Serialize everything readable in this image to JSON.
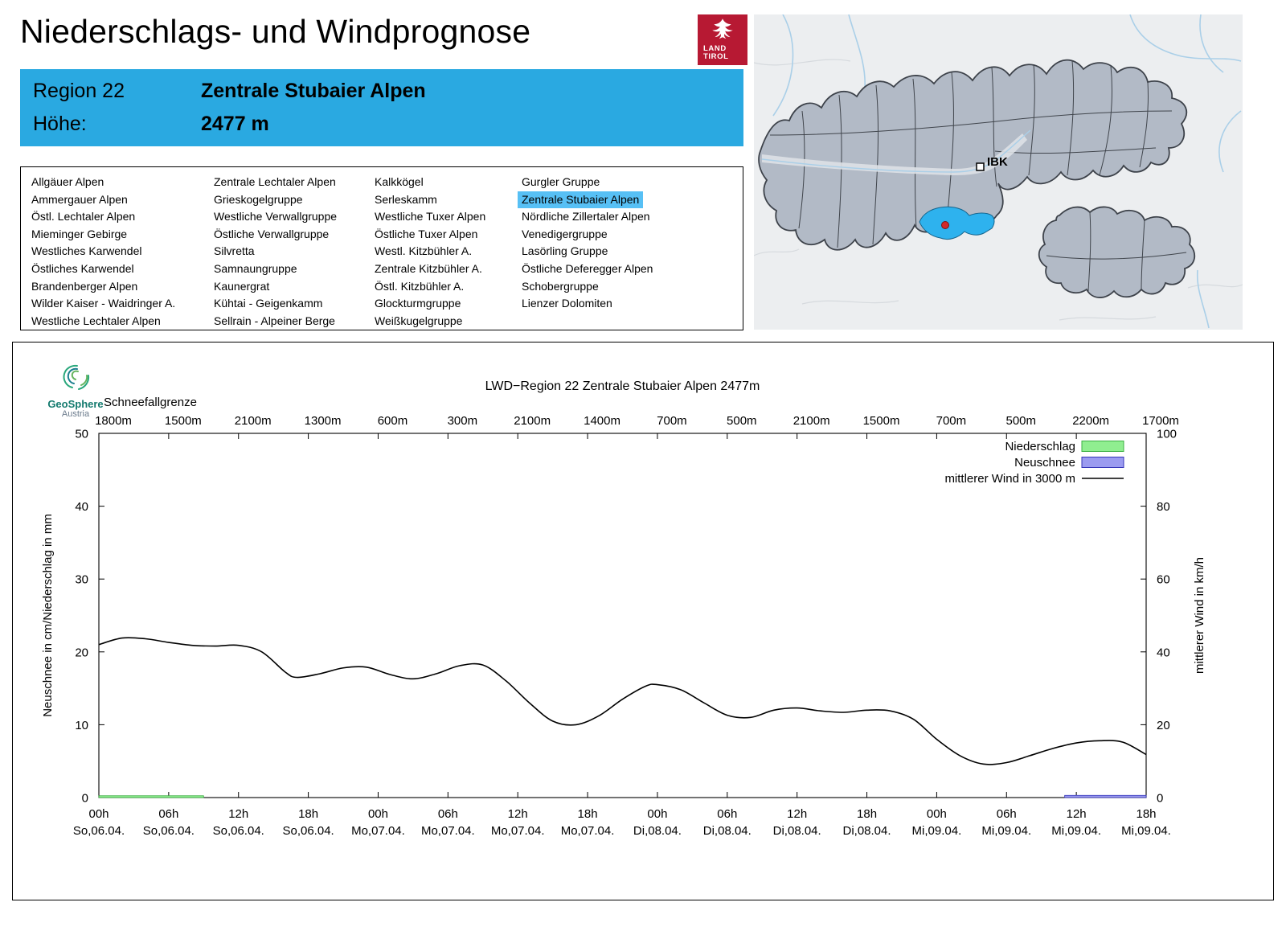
{
  "page": {
    "title": "Niederschlags- und Windprognose"
  },
  "colors": {
    "header_blue": "#2aa9e1",
    "list_highlight_blue": "#57c0f5",
    "map_highlight_blue": "#2eb2ee",
    "tirol_red": "#b71933",
    "marker_red": "#d42a2a"
  },
  "land_tirol_logo": {
    "line1": "LAND",
    "line2": "TIROL"
  },
  "geosphere_logo": {
    "line1": "GeoSphere",
    "line2": "Austria"
  },
  "region_header": {
    "region_label": "Region 22",
    "region_name": "Zentrale Stubaier Alpen",
    "altitude_label": "Höhe:",
    "altitude_value": "2477 m"
  },
  "map": {
    "city_label": "IBK"
  },
  "region_list": {
    "selected": "Zentrale Stubaier Alpen",
    "columns": [
      [
        "Allgäuer Alpen",
        "Ammergauer Alpen",
        "Östl. Lechtaler Alpen",
        "Mieminger Gebirge",
        "Westliches Karwendel",
        "Östliches Karwendel",
        "Brandenberger Alpen",
        "Wilder Kaiser - Waidringer A.",
        "Westliche Lechtaler Alpen"
      ],
      [
        "Zentrale Lechtaler Alpen",
        "Grieskogelgruppe",
        "Westliche Verwallgruppe",
        "Östliche Verwallgruppe",
        "Silvretta",
        "Samnaungruppe",
        "Kaunergrat",
        "Kühtai - Geigenkamm",
        "Sellrain - Alpeiner Berge"
      ],
      [
        "Kalkkögel",
        "Serleskamm",
        "Westliche Tuxer Alpen",
        "Östliche Tuxer Alpen",
        "Westl. Kitzbühler A.",
        "Zentrale Kitzbühler A.",
        "Östl. Kitzbühler A.",
        "Glockturmgruppe",
        "Weißkugelgruppe"
      ],
      [
        "Gurgler Gruppe",
        "Zentrale Stubaier Alpen",
        "Nördliche Zillertaler Alpen",
        "Venedigergruppe",
        "Lasörling Gruppe",
        "Östliche Deferegger Alpen",
        "Schobergruppe",
        "Lienzer Dolomiten"
      ]
    ]
  },
  "chart_data": {
    "type": "line",
    "title": "LWD−Region 22 Zentrale Stubaier Alpen 2477m",
    "snowline": {
      "label": "Schneefallgrenze",
      "values": [
        "1800m",
        "1500m",
        "2100m",
        "1300m",
        "600m",
        "300m",
        "2100m",
        "1400m",
        "700m",
        "500m",
        "2100m",
        "1500m",
        "700m",
        "500m",
        "2200m",
        "1700m"
      ]
    },
    "ylabel_left": "Neuschnee in cm/Niederschlag in mm",
    "ylabel_right": "mittlerer Wind in km/h",
    "ylim_left": [
      0,
      50
    ],
    "ylim_right": [
      0,
      100
    ],
    "yticks_left": [
      0,
      10,
      20,
      30,
      40,
      50
    ],
    "yticks_right": [
      0,
      20,
      40,
      60,
      80,
      100
    ],
    "x_hours_range": [
      0,
      90
    ],
    "x_ticks": [
      {
        "time": "00h",
        "date": "So,06.04."
      },
      {
        "time": "06h",
        "date": "So,06.04."
      },
      {
        "time": "12h",
        "date": "So,06.04."
      },
      {
        "time": "18h",
        "date": "So,06.04."
      },
      {
        "time": "00h",
        "date": "Mo,07.04."
      },
      {
        "time": "06h",
        "date": "Mo,07.04."
      },
      {
        "time": "12h",
        "date": "Mo,07.04."
      },
      {
        "time": "18h",
        "date": "Mo,07.04."
      },
      {
        "time": "00h",
        "date": "Di,08.04."
      },
      {
        "time": "06h",
        "date": "Di,08.04."
      },
      {
        "time": "12h",
        "date": "Di,08.04."
      },
      {
        "time": "18h",
        "date": "Di,08.04."
      },
      {
        "time": "00h",
        "date": "Mi,09.04."
      },
      {
        "time": "06h",
        "date": "Mi,09.04."
      },
      {
        "time": "12h",
        "date": "Mi,09.04."
      },
      {
        "time": "18h",
        "date": "Mi,09.04."
      }
    ],
    "legend": [
      {
        "label": "Niederschlag",
        "swatch": "box",
        "color": "#90ee90",
        "border": "#3cb043"
      },
      {
        "label": "Neuschnee",
        "swatch": "box",
        "color": "#9b9bf0",
        "border": "#3434b8"
      },
      {
        "label": "mittlerer Wind in 3000 m",
        "swatch": "line",
        "color": "#000000"
      }
    ],
    "series": [
      {
        "name": "mittlerer Wind in 3000 m",
        "axis": "right",
        "unit": "km/h",
        "x_hours": [
          0,
          2,
          4,
          6,
          8,
          10,
          12,
          14,
          16,
          17,
          19,
          21,
          23,
          25,
          27,
          29,
          31,
          33,
          35,
          37,
          39,
          41,
          43,
          45,
          47,
          48,
          50,
          52,
          54,
          56,
          58,
          60,
          62,
          64,
          66,
          68,
          70,
          72,
          74,
          76,
          78,
          80,
          82,
          84,
          86,
          88,
          90
        ],
        "values": [
          42,
          43.8,
          43.6,
          42.6,
          41.8,
          41.6,
          41.8,
          40,
          34.5,
          33,
          34,
          35.6,
          35.8,
          33.8,
          32.6,
          34,
          36.2,
          36.4,
          32,
          26,
          21,
          20,
          22.5,
          27,
          30.6,
          31,
          29.6,
          26,
          22.6,
          22,
          24,
          24.6,
          23.8,
          23.4,
          24,
          23.8,
          21.5,
          16,
          11.5,
          9.2,
          9.6,
          11.5,
          13.5,
          15,
          15.6,
          15.2,
          11.8
        ]
      },
      {
        "name": "Niederschlag",
        "axis": "left",
        "unit": "mm",
        "type": "bar",
        "segments": [
          {
            "from": 0,
            "to": 9,
            "value": 0.25
          }
        ]
      },
      {
        "name": "Neuschnee",
        "axis": "left",
        "unit": "cm",
        "type": "bar",
        "segments": [
          {
            "from": 83,
            "to": 90,
            "value": 0.3
          }
        ]
      }
    ]
  }
}
